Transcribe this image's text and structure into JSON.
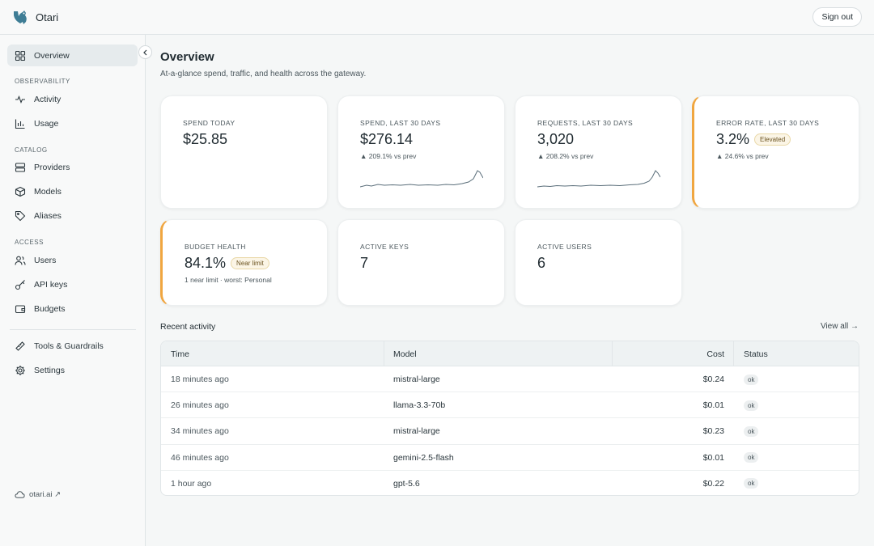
{
  "app": {
    "name": "Otari",
    "signout_label": "Sign out"
  },
  "sidebar": {
    "overview_label": "Overview",
    "sections": {
      "observability": "OBSERVABILITY",
      "catalog": "CATALOG",
      "access": "ACCESS"
    },
    "items": {
      "activity": "Activity",
      "usage": "Usage",
      "providers": "Providers",
      "models": "Models",
      "aliases": "Aliases",
      "users": "Users",
      "api_keys": "API keys",
      "budgets": "Budgets",
      "tools": "Tools & Guardrails",
      "settings": "Settings"
    },
    "footer_link": "otari.ai ↗"
  },
  "header": {
    "title": "Overview",
    "subtitle": "At-a-glance spend, traffic, and health across the gateway."
  },
  "cards": {
    "spend_today": {
      "label": "SPEND TODAY",
      "value": "$25.85"
    },
    "spend_30": {
      "label": "SPEND, LAST 30 DAYS",
      "value": "$276.14",
      "delta": "▲ 209.1% vs prev"
    },
    "requests_30": {
      "label": "REQUESTS, LAST 30 DAYS",
      "value": "3,020",
      "delta": "▲ 208.2% vs prev"
    },
    "error_rate": {
      "label": "ERROR RATE, LAST 30 DAYS",
      "value": "3.2%",
      "badge": "Elevated",
      "delta": "▲ 24.6% vs prev"
    },
    "budget_health": {
      "label": "BUDGET HEALTH",
      "value": "84.1%",
      "badge": "Near limit",
      "detail": "1 near limit · worst: Personal"
    },
    "active_keys": {
      "label": "ACTIVE KEYS",
      "value": "7"
    },
    "active_users": {
      "label": "ACTIVE USERS",
      "value": "6"
    }
  },
  "recent": {
    "title": "Recent activity",
    "view_all": "View all →",
    "columns": {
      "time": "Time",
      "model": "Model",
      "cost": "Cost",
      "status": "Status"
    },
    "rows": [
      {
        "time": "18 minutes ago",
        "model": "mistral-large",
        "cost": "$0.24",
        "status": "ok"
      },
      {
        "time": "26 minutes ago",
        "model": "llama-3.3-70b",
        "cost": "$0.01",
        "status": "ok"
      },
      {
        "time": "34 minutes ago",
        "model": "mistral-large",
        "cost": "$0.23",
        "status": "ok"
      },
      {
        "time": "46 minutes ago",
        "model": "gemini-2.5-flash",
        "cost": "$0.01",
        "status": "ok"
      },
      {
        "time": "1 hour ago",
        "model": "gpt-5.6",
        "cost": "$0.22",
        "status": "ok"
      }
    ]
  },
  "colors": {
    "accent_warning": "#f0a640",
    "spark_line": "#5a6e7a"
  },
  "icons": [
    "logo-icon",
    "grid-icon",
    "activity-icon",
    "bar-chart-icon",
    "server-icon",
    "cube-icon",
    "tag-icon",
    "users-icon",
    "key-icon",
    "wallet-icon",
    "ruler-icon",
    "gear-icon",
    "cloud-icon",
    "chevron-left-icon"
  ]
}
